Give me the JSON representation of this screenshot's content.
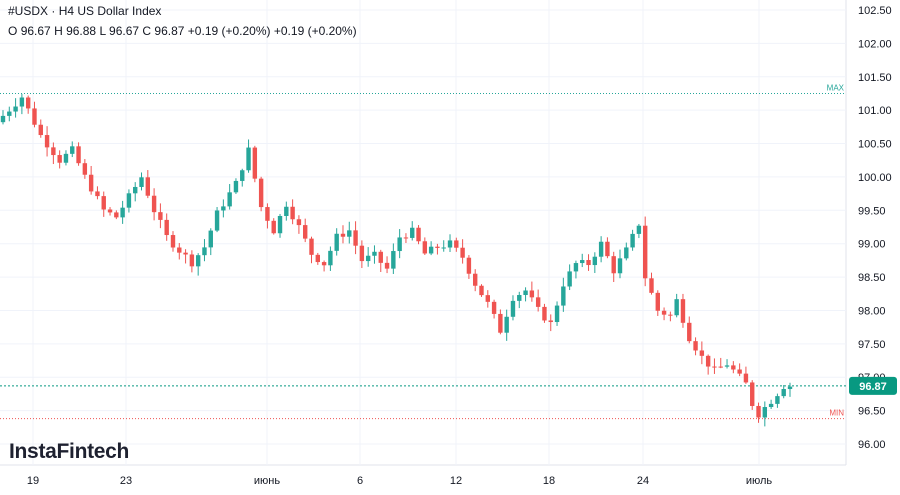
{
  "header": {
    "symbol": "#USDX",
    "timeframe": "H4",
    "instrument": "US Dollar Index",
    "ohlc": {
      "o_label": "O",
      "o": "96.67",
      "h_label": "H",
      "h": "96.88",
      "l_label": "L",
      "l": "96.67",
      "c_label": "C",
      "c": "96.87",
      "change": "+0.19 (+0.20%)",
      "change2": "+0.19 (+0.20%)"
    }
  },
  "logo_text": "InstaFintech",
  "colors": {
    "up": "#26a69a",
    "down": "#ef5350",
    "max_line": "#26a69a",
    "min_line": "#ef5350",
    "current_line": "#089981",
    "current_badge": "#089981",
    "grid": "#f0f3fa",
    "axis_text": "#131722"
  },
  "chart_data": {
    "type": "candlestick",
    "y_axis": {
      "ticks": [
        "102.50",
        "102.00",
        "101.50",
        "101.00",
        "100.50",
        "100.00",
        "99.50",
        "99.00",
        "98.50",
        "98.00",
        "97.50",
        "97.00",
        "96.50",
        "96.00"
      ],
      "range": [
        95.9,
        102.55
      ]
    },
    "x_axis": {
      "tick_labels": [
        "19",
        "23",
        "июнь",
        "6",
        "12",
        "18",
        "24",
        "июль"
      ]
    },
    "markers": {
      "max_label": "MAX",
      "max_value": 101.25,
      "min_label": "MIN",
      "min_value": 96.38,
      "current_value": 96.87,
      "current_label": "96.87"
    },
    "path_points": [
      [
        0,
        100.82
      ],
      [
        4,
        101.2
      ],
      [
        7,
        100.62
      ],
      [
        10,
        100.25
      ],
      [
        12,
        100.4
      ],
      [
        14,
        100.0
      ],
      [
        17,
        99.5
      ],
      [
        19,
        99.4
      ],
      [
        21,
        99.7
      ],
      [
        23,
        100.0
      ],
      [
        25,
        99.5
      ],
      [
        27,
        99.1
      ],
      [
        29,
        98.9
      ],
      [
        31,
        98.72
      ],
      [
        33,
        98.95
      ],
      [
        35,
        99.45
      ],
      [
        38,
        99.9
      ],
      [
        40,
        100.4
      ],
      [
        42,
        99.55
      ],
      [
        44,
        99.2
      ],
      [
        46,
        99.6
      ],
      [
        48,
        99.25
      ],
      [
        50,
        98.85
      ],
      [
        52,
        98.7
      ],
      [
        54,
        99.1
      ],
      [
        56,
        99.2
      ],
      [
        58,
        98.75
      ],
      [
        60,
        98.82
      ],
      [
        62,
        98.62
      ],
      [
        64,
        99.1
      ],
      [
        66,
        99.18
      ],
      [
        68,
        98.85
      ],
      [
        70,
        98.95
      ],
      [
        72,
        99.0
      ],
      [
        74,
        98.8
      ],
      [
        76,
        98.4
      ],
      [
        78,
        98.1
      ],
      [
        80,
        97.7
      ],
      [
        82,
        98.2
      ],
      [
        84,
        98.3
      ],
      [
        86,
        98.0
      ],
      [
        88,
        97.8
      ],
      [
        90,
        98.4
      ],
      [
        92,
        98.7
      ],
      [
        94,
        98.7
      ],
      [
        96,
        99.0
      ],
      [
        98,
        98.6
      ],
      [
        100,
        98.9
      ],
      [
        102,
        99.3
      ],
      [
        103,
        98.5
      ],
      [
        105,
        98.0
      ],
      [
        107,
        97.92
      ],
      [
        108,
        98.15
      ],
      [
        110,
        97.6
      ],
      [
        112,
        97.3
      ],
      [
        114,
        97.1
      ],
      [
        116,
        97.2
      ],
      [
        118,
        97.0
      ],
      [
        119,
        96.9
      ],
      [
        120,
        96.6
      ],
      [
        121,
        96.45
      ],
      [
        123,
        96.65
      ],
      [
        125,
        96.87
      ]
    ]
  }
}
